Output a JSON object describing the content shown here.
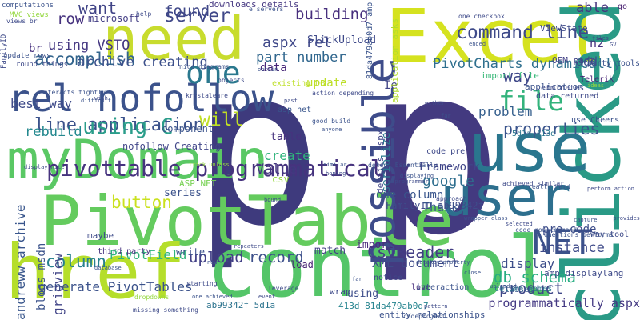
{
  "words": [
    {
      "text": "p",
      "color": "#3e3a7d"
    },
    {
      "text": "p",
      "color": "#433a80"
    },
    {
      "text": "need",
      "color": "#c8dc2e"
    },
    {
      "text": "Excel",
      "color": "#d5e21f"
    },
    {
      "text": "clicked",
      "color": "#2a9a86"
    },
    {
      "text": "control",
      "color": "#54c568"
    },
    {
      "text": "PivotTable",
      "color": "#64cb5e"
    },
    {
      "text": "use",
      "color": "#2a768e"
    },
    {
      "text": "user",
      "color": "#2d6f8e"
    },
    {
      "text": "href",
      "color": "#b5de2b"
    },
    {
      "text": "myDomain",
      "color": "#5ac864"
    },
    {
      "text": "rel nofollow",
      "color": "#3b528b"
    },
    {
      "text": "possible",
      "color": "#3e4c8a"
    },
    {
      "text": "one",
      "color": "#2a788e"
    },
    {
      "text": "NET",
      "color": "#3b528b"
    },
    {
      "text": "file",
      "color": "#33b37c"
    },
    {
      "text": "pivottable programmatically",
      "color": "#46337e"
    },
    {
      "text": "command line",
      "color": "#3e4a89"
    },
    {
      "text": "line application",
      "color": "#3b528b"
    },
    {
      "text": "using C",
      "color": "#2a9d8a"
    },
    {
      "text": "properties",
      "color": "#3a548c"
    },
    {
      "text": "accomplish",
      "color": "#33658d"
    },
    {
      "text": "server",
      "color": "#3f4788"
    },
    {
      "text": "building",
      "color": "#472f7d"
    },
    {
      "text": "aspx rel",
      "color": "#3f4889"
    },
    {
      "text": "want",
      "color": "#414487"
    },
    {
      "text": "row",
      "color": "#46327e"
    },
    {
      "text": "found",
      "color": "#3f4788"
    },
    {
      "text": "part number",
      "color": "#31678e"
    },
    {
      "text": "PivotCharts dynamically",
      "color": "#2e6f8e"
    },
    {
      "text": "archive creating",
      "color": "#3c508b"
    },
    {
      "text": "using VSTO",
      "color": "#453882"
    },
    {
      "text": "best way",
      "color": "#3e4a89"
    },
    {
      "text": "will",
      "color": "#c0df25"
    },
    {
      "text": "rebuild",
      "color": "#23888e"
    },
    {
      "text": "button",
      "color": "#cae11f"
    },
    {
      "text": "column",
      "color": "#27808e"
    },
    {
      "text": "upload",
      "color": "#424086"
    },
    {
      "text": "record",
      "color": "#3c4f8a"
    },
    {
      "text": "PivotField",
      "color": "#2fb47c"
    },
    {
      "text": "CsvReader",
      "color": "#433d84"
    },
    {
      "text": "XML document",
      "color": "#3e4a89"
    },
    {
      "text": "one column",
      "color": "#39558c"
    },
    {
      "text": "db schema",
      "color": "#26ad81"
    },
    {
      "text": "product",
      "color": "#3f4788"
    },
    {
      "text": "display",
      "color": "#3d4e8a"
    },
    {
      "text": "generate PivotTables",
      "color": "#3b528b"
    },
    {
      "text": "gridview",
      "color": "#414487"
    },
    {
      "text": "andreww archive",
      "color": "#39568c"
    },
    {
      "text": "blogs msdn",
      "color": "#3b528b"
    },
    {
      "text": "Value",
      "color": "#453781"
    },
    {
      "text": "create",
      "color": "#2fb47c"
    },
    {
      "text": "google",
      "color": "#2e6e8e"
    },
    {
      "text": "Thank",
      "color": "#38588c"
    },
    {
      "text": "way",
      "color": "#3f4889"
    },
    {
      "text": "problem",
      "color": "#355f8d"
    },
    {
      "text": "update",
      "color": "#bddf26"
    },
    {
      "text": "data",
      "color": "#482878"
    },
    {
      "text": "serialize",
      "color": "#2a788e"
    },
    {
      "text": "instance",
      "color": "#3e4a89"
    },
    {
      "text": "pre code",
      "color": "#3d4d8a"
    },
    {
      "text": "programmatically aspx",
      "color": "#443983"
    },
    {
      "text": "Ie",
      "color": "#414487"
    },
    {
      "text": "able",
      "color": "#46337e"
    },
    {
      "text": "n2",
      "color": "#46317e"
    },
    {
      "text": "add",
      "color": "#3d4e8a"
    },
    {
      "text": "br",
      "color": "#46307e"
    },
    {
      "text": "match",
      "color": "#423f85"
    },
    {
      "text": "import",
      "color": "#4a2a7c"
    },
    {
      "text": "SlickUpload",
      "color": "#3e4989"
    },
    {
      "text": "series",
      "color": "#3b528b"
    },
    {
      "text": "Framework",
      "color": "#404588"
    },
    {
      "text": "table",
      "color": "#46327e"
    },
    {
      "text": "csv",
      "color": "#95d840"
    },
    {
      "text": "component",
      "color": "#3a538b"
    },
    {
      "text": "nofollow Creating",
      "color": "#404588"
    },
    {
      "text": "FamilyID ab99342f",
      "color": "#3e4c8a"
    },
    {
      "text": "write",
      "color": "#3c508b"
    },
    {
      "text": "load",
      "color": "#482374"
    },
    {
      "text": "using",
      "color": "#3d4d8a"
    },
    {
      "text": "microsoft",
      "color": "#433e85"
    },
    {
      "text": "import file",
      "color": "#37b878"
    },
    {
      "text": "application",
      "color": "#3b528b"
    },
    {
      "text": "OEM part",
      "color": "#424186"
    },
    {
      "text": "Telerik",
      "color": "#482677"
    },
    {
      "text": "go",
      "color": "#481f70"
    },
    {
      "text": "ViewState",
      "color": "#3e4a89"
    },
    {
      "text": "application asks",
      "color": "#b2dd2d"
    },
    {
      "text": "81da479ab0d7 amp",
      "color": "#3a538b"
    },
    {
      "text": "details aspx",
      "color": "#404588"
    },
    {
      "text": "downloads details",
      "color": "#453781"
    },
    {
      "text": "existing DB",
      "color": "#bddf26"
    },
    {
      "text": "maybe",
      "color": "#3e4a89"
    },
    {
      "text": "third party",
      "color": "#46327e"
    },
    {
      "text": "love",
      "color": "#472d7b"
    },
    {
      "text": "classes",
      "color": "#38588c"
    },
    {
      "text": "ab99342f 5d1a",
      "color": "#2c738e"
    },
    {
      "text": "413d 81da479ab0d7",
      "color": "#25848e"
    },
    {
      "text": "entity relationships",
      "color": "#3b528b"
    },
    {
      "text": "column names",
      "color": "#2a778e"
    },
    {
      "text": "amp displaylang",
      "color": "#3e4a89"
    },
    {
      "text": "5d1a 413d",
      "color": "#2a768e"
    },
    {
      "text": "code pre",
      "color": "#3e4989"
    },
    {
      "text": "interaction",
      "color": "#3b528b"
    },
    {
      "text": "notice",
      "color": "#3f4788"
    },
    {
      "text": "wrap",
      "color": "#3e4a89"
    },
    {
      "text": "ASP NET",
      "color": "#77d153"
    },
    {
      "text": "asp net",
      "color": "#39568c"
    },
    {
      "text": "use Cheers",
      "color": "#3b528b"
    },
    {
      "text": "terminates",
      "color": "#3e4a89"
    },
    {
      "text": "data returned",
      "color": "#3e4989"
    },
    {
      "text": "party tools",
      "color": "#3b528b"
    },
    {
      "text": "way tool",
      "color": "#3e4a89"
    },
    {
      "text": "computations",
      "color": "#3b528b"
    },
    {
      "text": "FamilyID",
      "color": "#3e4a89"
    },
    {
      "text": "update rows",
      "color": "#3b528b"
    },
    {
      "text": "round things",
      "color": "#3e4a89"
    },
    {
      "text": "MVC views",
      "color": "#95d840"
    },
    {
      "text": "views br",
      "color": "#3e4a89"
    },
    {
      "text": "e servers",
      "color": "#3b528b"
    },
    {
      "text": "help",
      "color": "#3e4a89"
    },
    {
      "text": "nice diagrams",
      "color": "#3b528b"
    },
    {
      "text": "krystaleare",
      "color": "#3e4a89"
    },
    {
      "text": "interacts tightly",
      "color": "#3b528b"
    },
    {
      "text": "display nice",
      "color": "#3e4a89"
    },
    {
      "text": "good build",
      "color": "#3b528b"
    },
    {
      "text": "action depending",
      "color": "#3e4a89"
    },
    {
      "text": "detect Essentially",
      "color": "#3b528b"
    },
    {
      "text": "achieved similar",
      "color": "#3e4a89"
    },
    {
      "text": "really hard",
      "color": "#3b528b"
    },
    {
      "text": "perform action",
      "color": "#3e4a89"
    },
    {
      "text": "questions performs",
      "color": "#3b528b"
    },
    {
      "text": "selected",
      "color": "#3e4a89"
    },
    {
      "text": "code row command",
      "color": "#3b528b"
    },
    {
      "text": "one checkbox",
      "color": "#3e4a89"
    },
    {
      "text": "database",
      "color": "#3b528b"
    },
    {
      "text": "dropdowns",
      "color": "#95d840"
    },
    {
      "text": "starting",
      "color": "#3e4a89"
    },
    {
      "text": "one achieved",
      "color": "#3b528b"
    },
    {
      "text": "missing something",
      "color": "#3e4a89"
    },
    {
      "text": "codeproject",
      "color": "#3b528b"
    },
    {
      "text": "pattern",
      "color": "#3e4a89"
    },
    {
      "text": "datakey property",
      "color": "#3b528b"
    },
    {
      "text": "leverage",
      "color": "#3e4a89"
    },
    {
      "text": "new",
      "color": "#3b528b"
    },
    {
      "text": "repeaters",
      "color": "#3e4a89"
    },
    {
      "text": "wrapper class",
      "color": "#3b528b"
    },
    {
      "text": "c programmer",
      "color": "#3e4a89"
    },
    {
      "text": "displaying",
      "color": "#3b528b"
    },
    {
      "text": "approach",
      "color": "#3e4a89"
    },
    {
      "text": "uploaded",
      "color": "#3b528b"
    },
    {
      "text": "provides",
      "color": "#3e4a89"
    },
    {
      "text": "capture",
      "color": "#3b528b"
    },
    {
      "text": "trick unless",
      "color": "#95d840"
    },
    {
      "text": "objects",
      "color": "#3e4a89"
    },
    {
      "text": "obtain",
      "color": "#3b528b"
    },
    {
      "text": "either",
      "color": "#3e4a89"
    },
    {
      "text": "far",
      "color": "#3b528b"
    },
    {
      "text": "event",
      "color": "#3e4a89"
    },
    {
      "text": "close",
      "color": "#3b528b"
    },
    {
      "text": "bound",
      "color": "#3e4a89"
    },
    {
      "text": "similar",
      "color": "#3b528b"
    },
    {
      "text": "hoping",
      "color": "#3e4a89"
    },
    {
      "text": "anyone",
      "color": "#3b528b"
    },
    {
      "text": "past",
      "color": "#3e4a89"
    },
    {
      "text": "difficult",
      "color": "#3b528b"
    },
    {
      "text": "wish",
      "color": "#3e4a89"
    },
    {
      "text": "ended",
      "color": "#3b528b"
    },
    {
      "text": "files",
      "color": "#3e4a89"
    },
    {
      "text": "ideas",
      "color": "#95d840"
    },
    {
      "text": "GV",
      "color": "#3e4a89"
    },
    {
      "text": "far",
      "color": "#3b528b"
    }
  ]
}
